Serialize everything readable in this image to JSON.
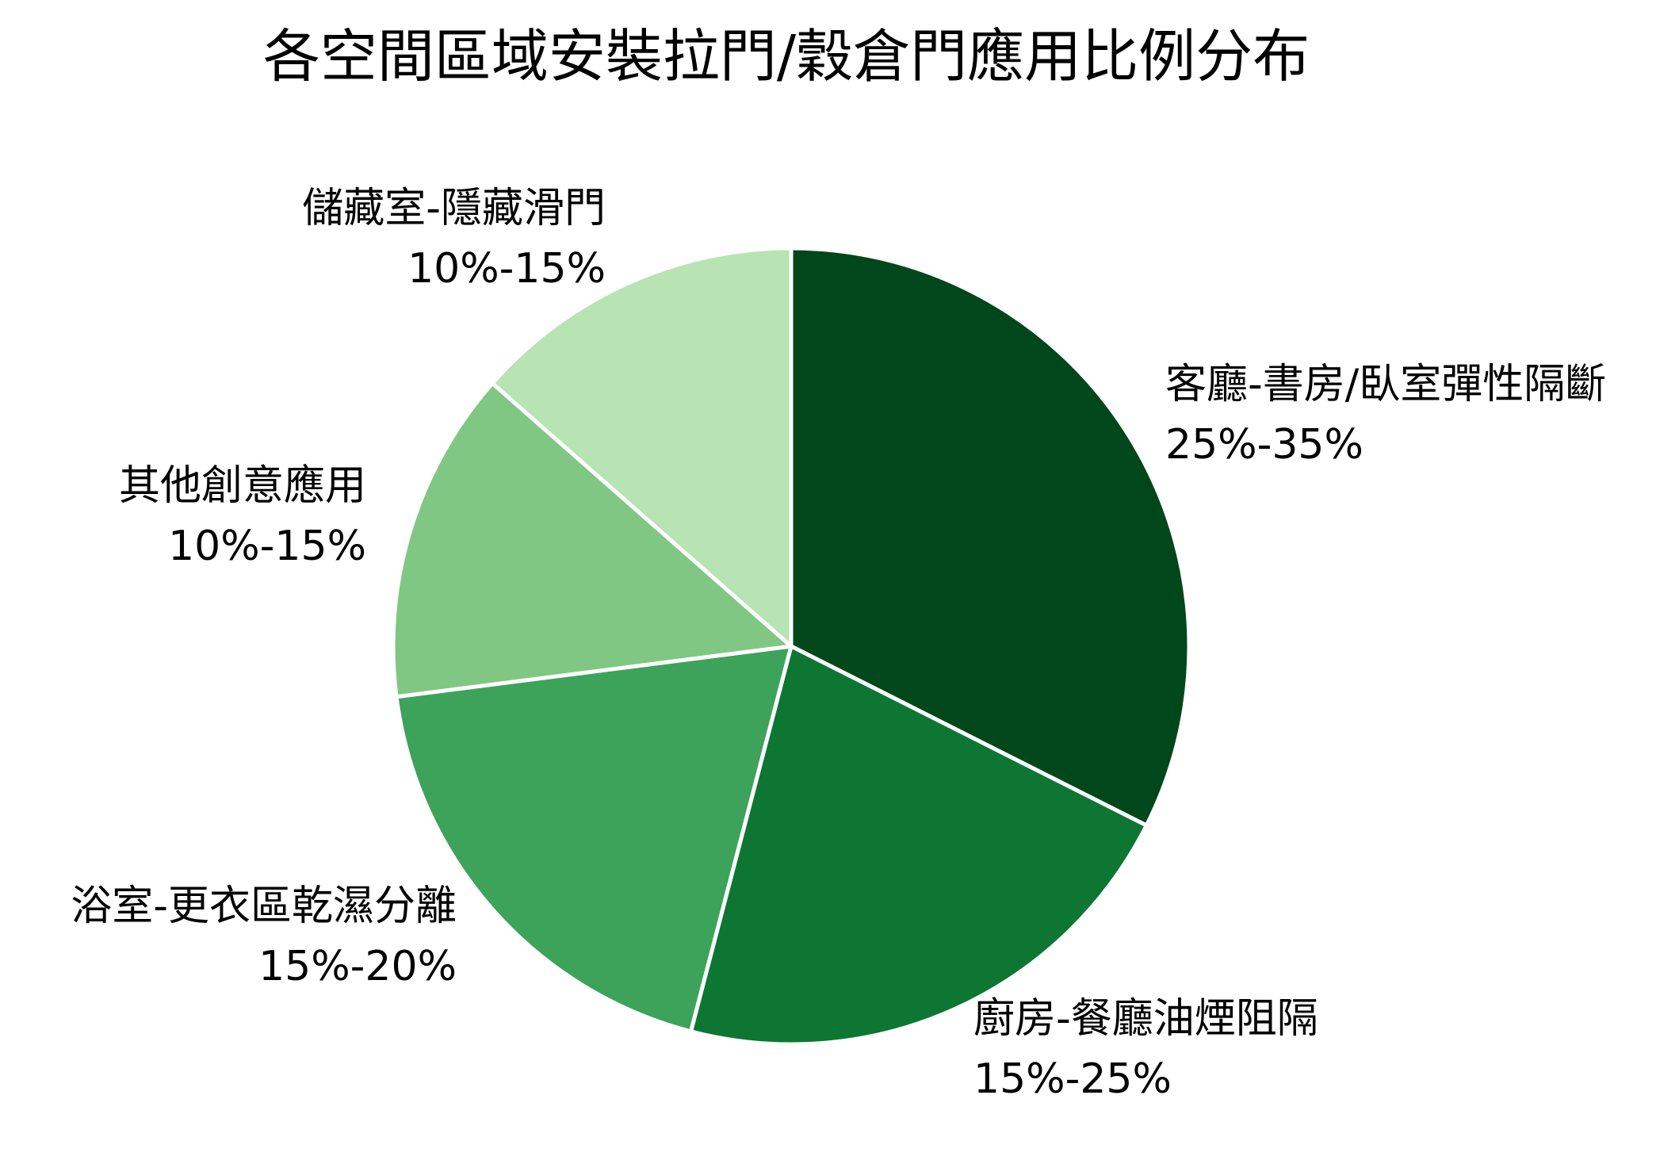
{
  "chart_data": {
    "type": "pie",
    "title": "各空間區域安裝拉門/穀倉門應用比例分布",
    "start_angle": "12 o'clock, clockwise",
    "slices": [
      {
        "label": "客廳-書房/臥室彈性隔斷",
        "range_text": "25%-35%",
        "value": 30,
        "color": "#00471b"
      },
      {
        "label": "廚房-餐廳油煙阻隔",
        "range_text": "15%-25%",
        "value": 20,
        "color": "#0e7633"
      },
      {
        "label": "浴室-更衣區乾濕分離",
        "range_text": "15%-20%",
        "value": 17.5,
        "color": "#3da35a"
      },
      {
        "label": "其他創意應用",
        "range_text": "10%-15%",
        "value": 12.5,
        "color": "#80c783"
      },
      {
        "label": "儲藏室-隱藏滑門",
        "range_text": "10%-15%",
        "value": 12.5,
        "color": "#b8e3b3"
      }
    ]
  }
}
